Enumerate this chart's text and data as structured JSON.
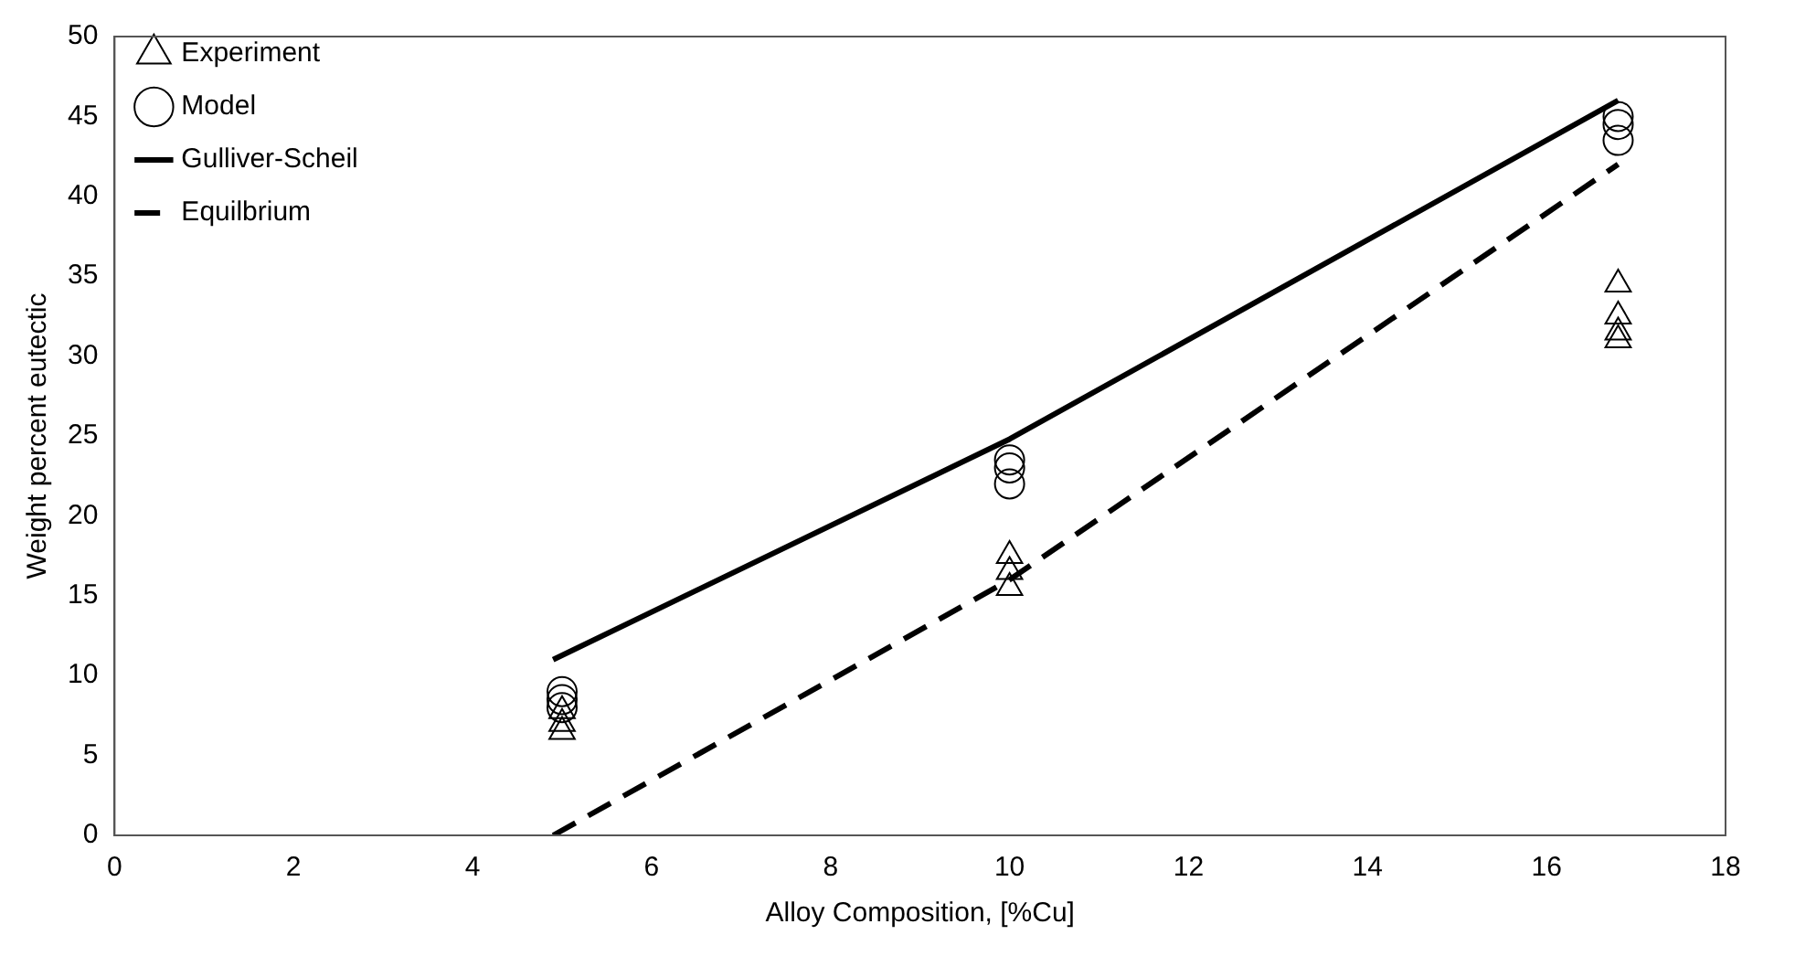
{
  "chart_data": {
    "type": "scatter",
    "xlabel": "Alloy Composition, [%Cu]",
    "ylabel": "Weight percent eutectic",
    "xlim": [
      0,
      18
    ],
    "xticks": [
      0,
      2,
      4,
      6,
      8,
      10,
      12,
      14,
      16,
      18
    ],
    "ylim": [
      0,
      50
    ],
    "yticks": [
      0,
      5,
      10,
      15,
      20,
      25,
      30,
      35,
      40,
      45,
      50
    ],
    "grid": false,
    "legend": "top left",
    "series": [
      {
        "name": "Experiment",
        "marker": "triangle",
        "color": "#000000",
        "x": [
          5,
          5,
          5,
          10,
          10,
          10,
          16.8,
          16.8,
          16.8,
          16.8
        ],
        "values": [
          6.5,
          7,
          7.8,
          15.5,
          16.5,
          17.5,
          31,
          31.5,
          32.5,
          34.5
        ]
      },
      {
        "name": "Model",
        "marker": "circle",
        "color": "#000000",
        "x": [
          5,
          5,
          5,
          10,
          10,
          10,
          16.8,
          16.8,
          16.8
        ],
        "values": [
          8,
          8.5,
          9,
          22,
          23,
          23.5,
          43.5,
          44.5,
          45
        ]
      },
      {
        "name": "Gulliver-Scheil",
        "type": "line",
        "line_style": "solid",
        "color": "#000000",
        "x": [
          4.9,
          10,
          16.8
        ],
        "values": [
          11,
          24.8,
          46
        ]
      },
      {
        "name": "Equilbrium",
        "type": "line",
        "line_style": "dashed",
        "color": "#000000",
        "x": [
          4.9,
          10,
          16.8
        ],
        "values": [
          0,
          16,
          42
        ]
      }
    ]
  }
}
